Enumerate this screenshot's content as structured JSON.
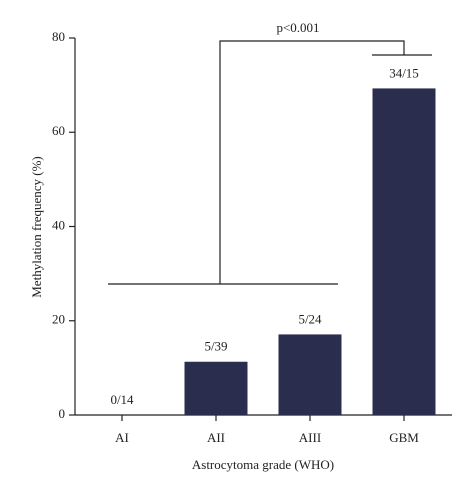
{
  "chart_data": {
    "type": "bar",
    "y_label": "Methylation frequency (%)",
    "x_label": "Astrocytoma grade (WHO)",
    "categories": [
      "AI",
      "AII",
      "AIII",
      "GBM"
    ],
    "values": [
      0,
      11.3,
      17.1,
      69.3
    ],
    "bar_annotations": [
      "0/14",
      "5/39",
      "5/24",
      "34/15"
    ],
    "significance": "p<0.001",
    "color": "#2b2d4e",
    "ylim": [
      0,
      80
    ],
    "yticks": [
      0,
      20,
      40,
      60,
      80
    ]
  }
}
